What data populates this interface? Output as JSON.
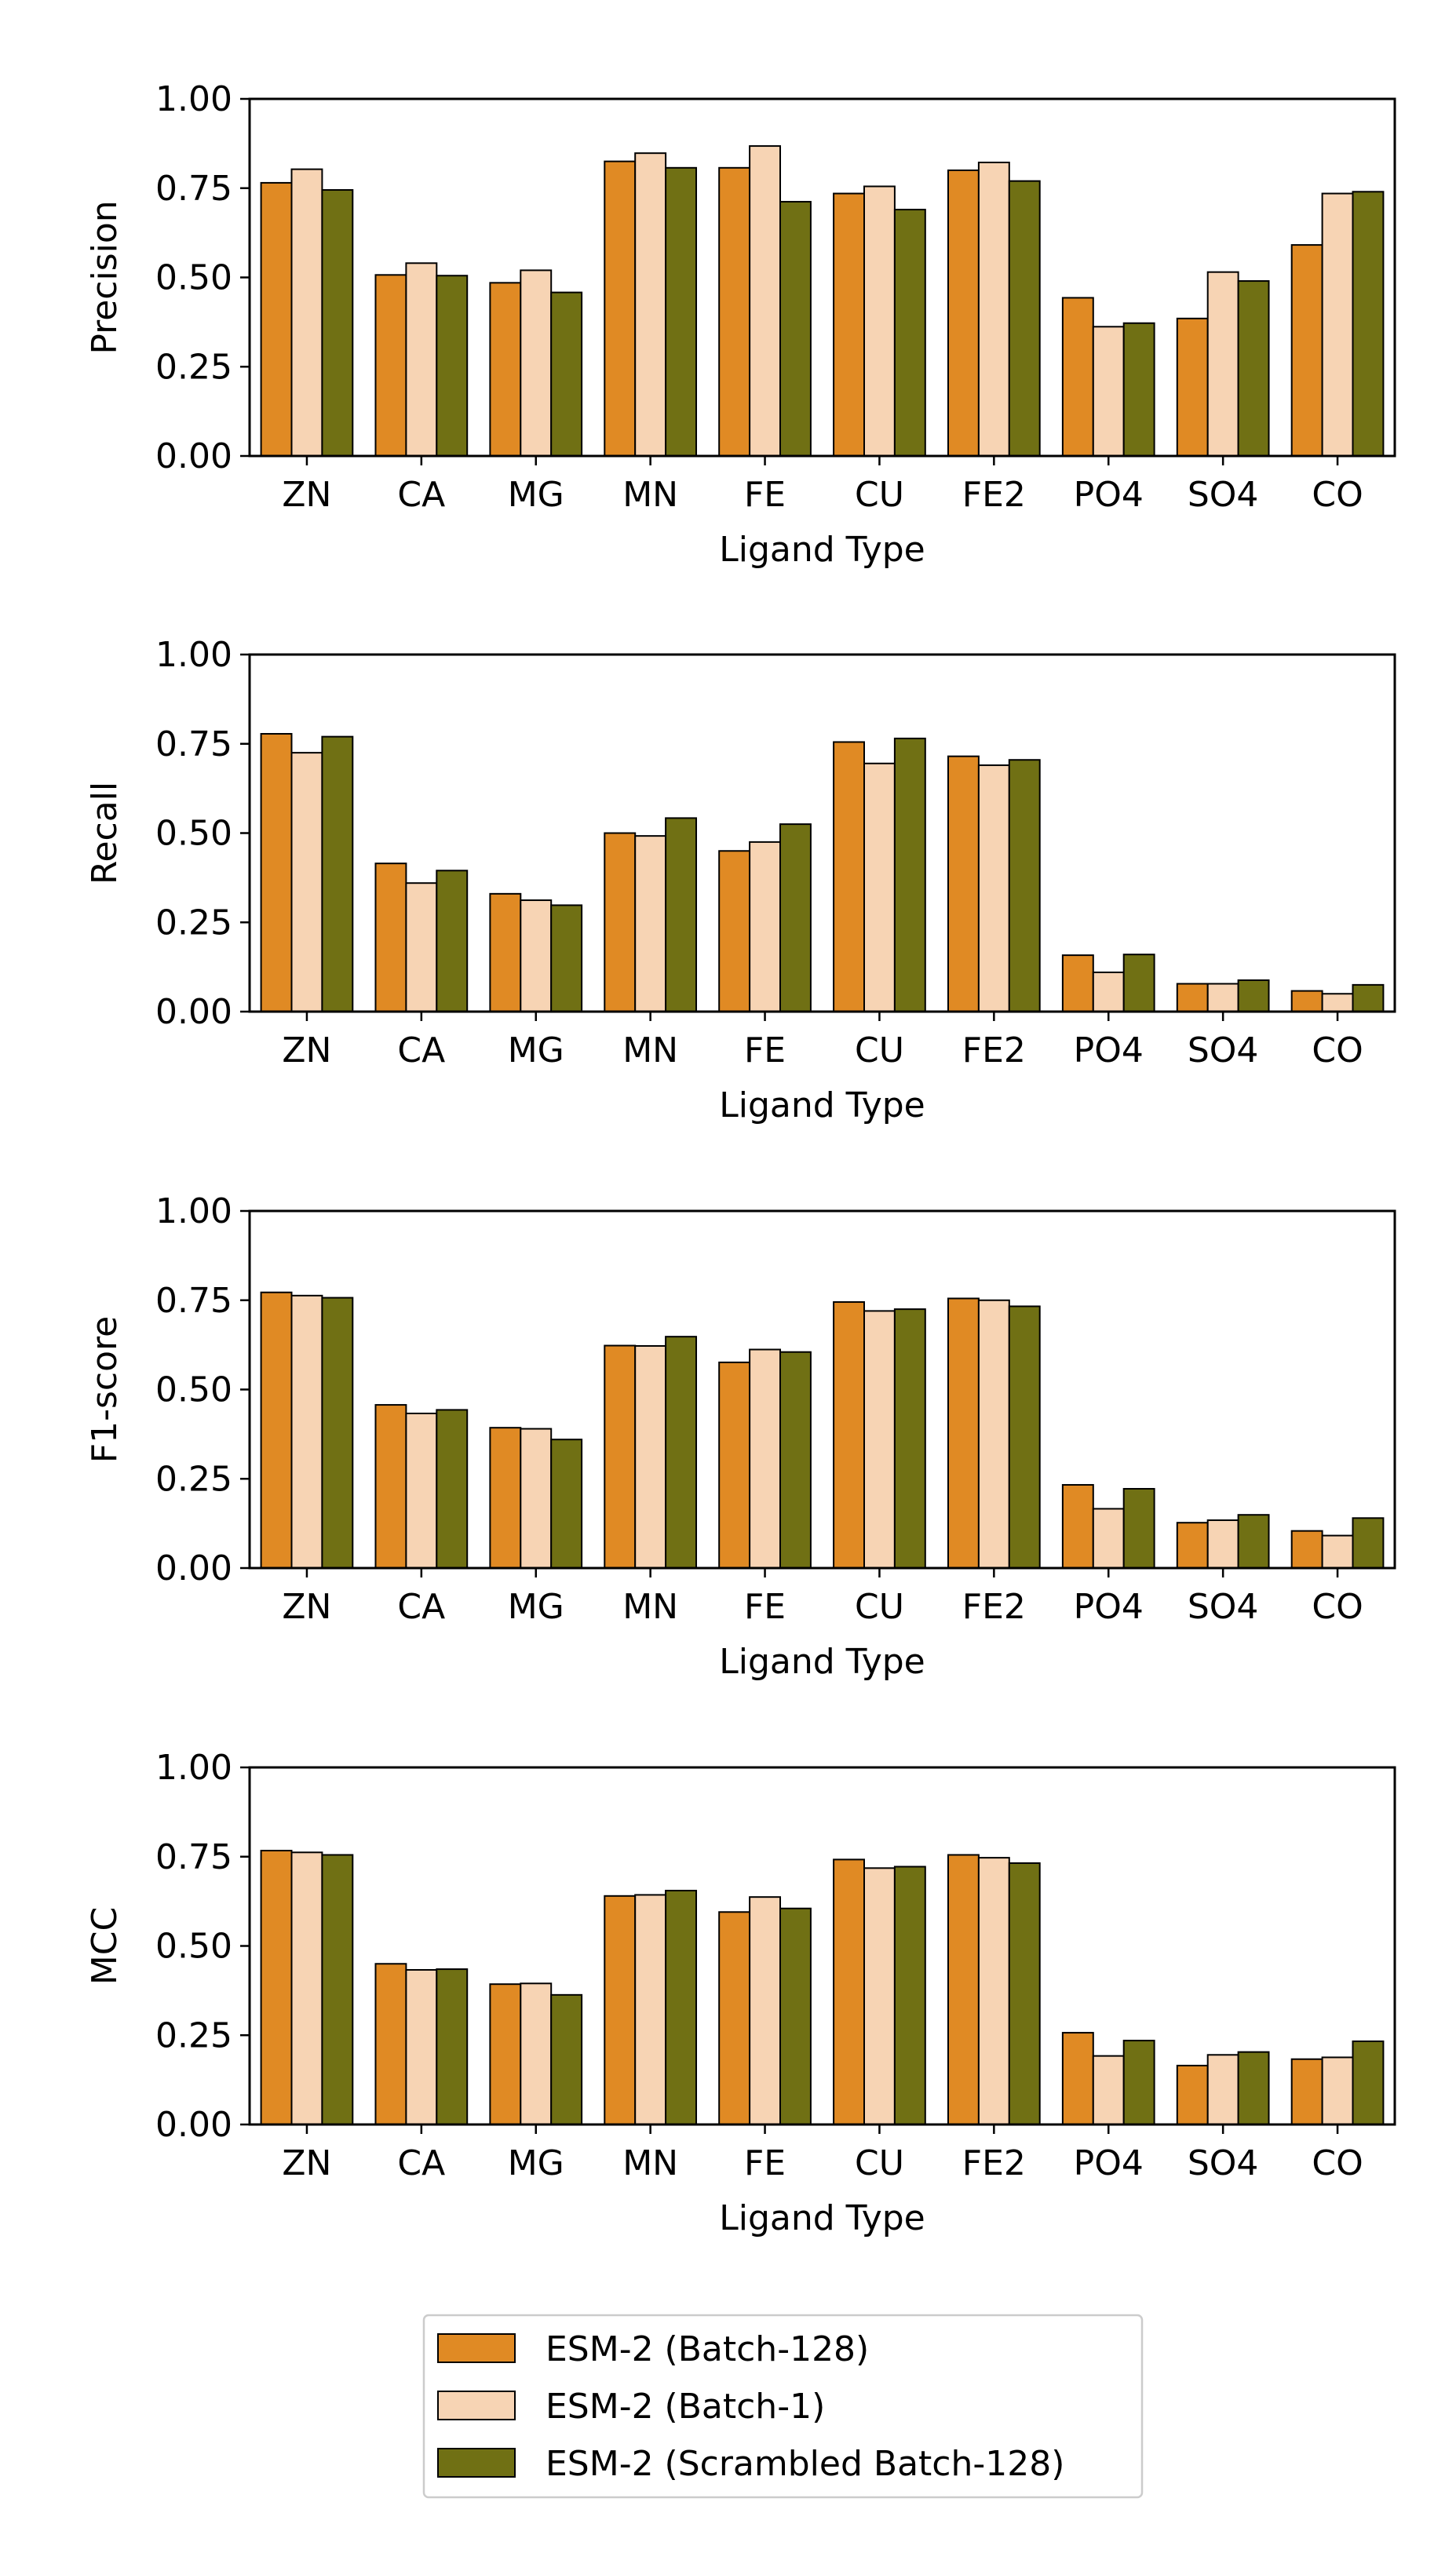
{
  "chart_data": [
    {
      "type": "bar",
      "ylabel": "Precision",
      "xlabel": "Ligand Type",
      "ylim": [
        0,
        1
      ],
      "yticks": [
        "0.00",
        "0.25",
        "0.50",
        "0.75",
        "1.00"
      ],
      "categories": [
        "ZN",
        "CA",
        "MG",
        "MN",
        "FE",
        "CU",
        "FE2",
        "PO4",
        "SO4",
        "CO"
      ],
      "series": [
        {
          "name": "ESM-2 (Batch-128)",
          "color": "#e08a24",
          "values": [
            0.765,
            0.507,
            0.485,
            0.825,
            0.807,
            0.735,
            0.8,
            0.443,
            0.385,
            0.591
          ]
        },
        {
          "name": "ESM-2 (Batch-1)",
          "color": "#f7d4b4",
          "values": [
            0.803,
            0.54,
            0.52,
            0.848,
            0.868,
            0.755,
            0.822,
            0.362,
            0.515,
            0.735
          ]
        },
        {
          "name": "ESM-2 (Scrambled Batch-128)",
          "color": "#707014",
          "values": [
            0.745,
            0.505,
            0.458,
            0.807,
            0.712,
            0.69,
            0.77,
            0.372,
            0.49,
            0.74
          ]
        }
      ],
      "grid": false
    },
    {
      "type": "bar",
      "ylabel": "Recall",
      "xlabel": "Ligand Type",
      "ylim": [
        0,
        1
      ],
      "yticks": [
        "0.00",
        "0.25",
        "0.50",
        "0.75",
        "1.00"
      ],
      "categories": [
        "ZN",
        "CA",
        "MG",
        "MN",
        "FE",
        "CU",
        "FE2",
        "PO4",
        "SO4",
        "CO"
      ],
      "series": [
        {
          "name": "ESM-2 (Batch-128)",
          "color": "#e08a24",
          "values": [
            0.778,
            0.415,
            0.33,
            0.5,
            0.45,
            0.755,
            0.715,
            0.158,
            0.078,
            0.058
          ]
        },
        {
          "name": "ESM-2 (Batch-1)",
          "color": "#f7d4b4",
          "values": [
            0.725,
            0.36,
            0.312,
            0.492,
            0.475,
            0.695,
            0.69,
            0.11,
            0.078,
            0.05
          ]
        },
        {
          "name": "ESM-2 (Scrambled Batch-128)",
          "color": "#707014",
          "values": [
            0.77,
            0.395,
            0.298,
            0.542,
            0.525,
            0.765,
            0.705,
            0.16,
            0.088,
            0.075
          ]
        }
      ],
      "grid": false
    },
    {
      "type": "bar",
      "ylabel": "F1-score",
      "xlabel": "Ligand Type",
      "ylim": [
        0,
        1
      ],
      "yticks": [
        "0.00",
        "0.25",
        "0.50",
        "0.75",
        "1.00"
      ],
      "categories": [
        "ZN",
        "CA",
        "MG",
        "MN",
        "FE",
        "CU",
        "FE2",
        "PO4",
        "SO4",
        "CO"
      ],
      "series": [
        {
          "name": "ESM-2 (Batch-128)",
          "color": "#e08a24",
          "values": [
            0.772,
            0.457,
            0.393,
            0.623,
            0.576,
            0.745,
            0.755,
            0.233,
            0.127,
            0.104
          ]
        },
        {
          "name": "ESM-2 (Batch-1)",
          "color": "#f7d4b4",
          "values": [
            0.763,
            0.433,
            0.39,
            0.622,
            0.612,
            0.72,
            0.75,
            0.166,
            0.134,
            0.091
          ]
        },
        {
          "name": "ESM-2 (Scrambled Batch-128)",
          "color": "#707014",
          "values": [
            0.757,
            0.443,
            0.36,
            0.648,
            0.605,
            0.725,
            0.733,
            0.222,
            0.149,
            0.14
          ]
        }
      ],
      "grid": false
    },
    {
      "type": "bar",
      "ylabel": "MCC",
      "xlabel": "Ligand Type",
      "ylim": [
        0,
        1
      ],
      "yticks": [
        "0.00",
        "0.25",
        "0.50",
        "0.75",
        "1.00"
      ],
      "categories": [
        "ZN",
        "CA",
        "MG",
        "MN",
        "FE",
        "CU",
        "FE2",
        "PO4",
        "SO4",
        "CO"
      ],
      "series": [
        {
          "name": "ESM-2 (Batch-128)",
          "color": "#e08a24",
          "values": [
            0.767,
            0.45,
            0.393,
            0.64,
            0.595,
            0.742,
            0.755,
            0.257,
            0.165,
            0.183
          ]
        },
        {
          "name": "ESM-2 (Batch-1)",
          "color": "#f7d4b4",
          "values": [
            0.762,
            0.433,
            0.395,
            0.643,
            0.637,
            0.718,
            0.747,
            0.192,
            0.195,
            0.188
          ]
        },
        {
          "name": "ESM-2 (Scrambled Batch-128)",
          "color": "#707014",
          "values": [
            0.755,
            0.435,
            0.363,
            0.655,
            0.605,
            0.722,
            0.732,
            0.235,
            0.203,
            0.233
          ]
        }
      ],
      "grid": false
    }
  ],
  "legend": {
    "placement": "bottom-center",
    "entries": [
      {
        "label": "ESM-2 (Batch-128)",
        "color": "#e08a24"
      },
      {
        "label": "ESM-2 (Batch-1)",
        "color": "#f7d4b4"
      },
      {
        "label": "ESM-2 (Scrambled Batch-128)",
        "color": "#707014"
      }
    ]
  }
}
